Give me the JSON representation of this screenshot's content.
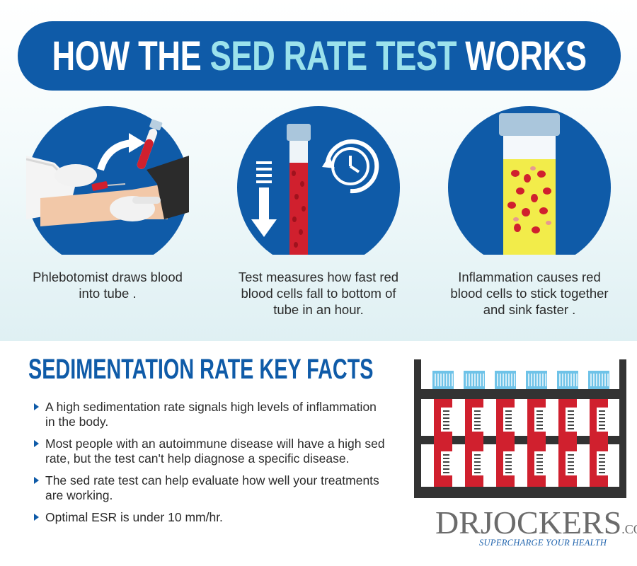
{
  "header": {
    "title_part1": "HOW THE ",
    "title_accent": "SED RATE TEST",
    "title_part2": " WORKS"
  },
  "steps": [
    {
      "icon": "phlebotomist-icon",
      "caption": "Phlebotomist draws blood into tube ."
    },
    {
      "icon": "test-tube-timer-icon",
      "caption": "Test measures how fast red blood cells fall to bottom of tube in an hour."
    },
    {
      "icon": "inflammation-tube-icon",
      "caption": "Inflammation causes red blood cells to stick together and sink faster ."
    }
  ],
  "facts": {
    "title": "SEDIMENTATION RATE KEY FACTS",
    "items": [
      "A high sedimentation rate signals high levels of inflammation in the body.",
      "Most people with an autoimmune disease will have a high sed rate, but the test can't help diagnose a specific disease.",
      "The sed rate test can help evaluate how well your treatments are working.",
      "Optimal ESR is under 10 mm/hr."
    ]
  },
  "logo": {
    "dr": "DR",
    "jockers": "JOCKERS",
    "com": ".COM",
    "tagline": "SUPERCHARGE YOUR HEALTH"
  },
  "colors": {
    "brand_blue": "#0f5ba8",
    "accent_cyan": "#9be2ec",
    "blood_red": "#d0202e"
  }
}
